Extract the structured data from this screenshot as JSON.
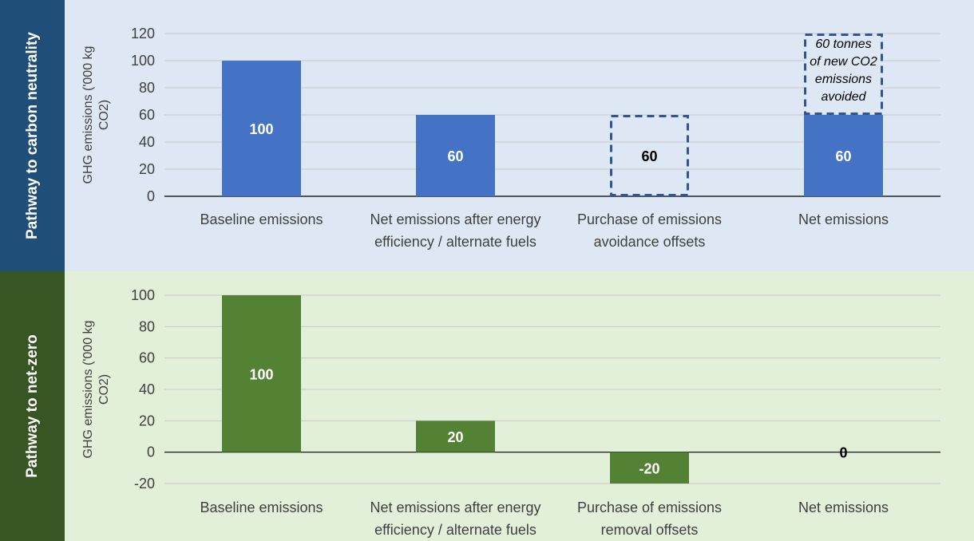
{
  "panels": {
    "top": {
      "label": "Pathway to carbon neutrality",
      "color": "#1f4e79",
      "background": "#dde8f4"
    },
    "bottom": {
      "label": "Pathway to net-zero",
      "color": "#375623",
      "background": "#e2efd9"
    }
  },
  "chart_data": [
    {
      "type": "bar",
      "categories": [
        [
          "Baseline emissions"
        ],
        [
          "Net emissions after energy",
          "efficiency / alternate fuels"
        ],
        [
          "Purchase of emissions",
          "avoidance offsets"
        ],
        [
          "Net emissions"
        ]
      ],
      "values": [
        100,
        60,
        60,
        60
      ],
      "data_labels": [
        "100",
        "60",
        "60",
        "60"
      ],
      "bar_styles": [
        "solid",
        "solid",
        "dashed",
        "solid"
      ],
      "ylabel": [
        "GHG emissions  ('000 kg",
        "CO2)"
      ],
      "ylim": [
        0,
        120
      ],
      "yticks": [
        0,
        20,
        40,
        60,
        80,
        100,
        120
      ],
      "color": "#4472c4",
      "dashed_color": "#2f5597",
      "grid": true,
      "annotation": {
        "category_index": 3,
        "from": 60,
        "to": 120,
        "lines": [
          "60 tonnes",
          "of new CO2",
          "emissions",
          "avoided"
        ]
      }
    },
    {
      "type": "bar",
      "categories": [
        [
          "Baseline emissions"
        ],
        [
          "Net emissions after energy",
          "efficiency / alternate fuels"
        ],
        [
          "Purchase of emissions",
          "removal offsets"
        ],
        [
          "Net emissions"
        ]
      ],
      "values": [
        100,
        20,
        -20,
        0
      ],
      "data_labels": [
        "100",
        "20",
        "-20",
        "0"
      ],
      "bar_styles": [
        "solid",
        "solid",
        "solid",
        "solid"
      ],
      "ylabel": [
        "GHG emissions  ('000 kg",
        "CO2)"
      ],
      "ylim": [
        -20,
        100
      ],
      "yticks": [
        -20,
        0,
        20,
        40,
        60,
        80,
        100
      ],
      "color": "#548235",
      "grid": true
    }
  ]
}
